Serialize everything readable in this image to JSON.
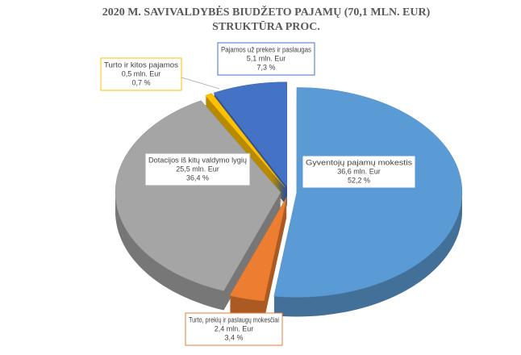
{
  "chart_data": {
    "type": "pie",
    "title": [
      "2020 M. SAVIVALDYBĖS BIUDŽETO PAJAMŲ (70,1 MLN. EUR)",
      "STRUKTŪRA PROC."
    ],
    "categories": [
      "Gyventojų pajamų mokestis",
      "Turto, prekių ir paslaugų mokesčiai",
      "Dotacijos iš kitų valdymo lygių",
      "Turto ir kitos pajamos",
      "Pajamos už prekes ir paslaugas"
    ],
    "amount_labels": [
      "36,6 mln. Eur",
      "2,4 mln. Eur",
      "25,5 mln. Eur",
      "0,5 mln. Eur",
      "5,1 mln. Eur"
    ],
    "values": [
      52.2,
      3.4,
      36.4,
      0.7,
      7.3
    ],
    "value_labels": [
      "52,2 %",
      "3,4 %",
      "36,4 %",
      "0,7 %",
      "7,3 %"
    ],
    "colors": [
      "#5b9bd5",
      "#ed7d31",
      "#a5a5a5",
      "#ffc000",
      "#4472c4"
    ]
  }
}
